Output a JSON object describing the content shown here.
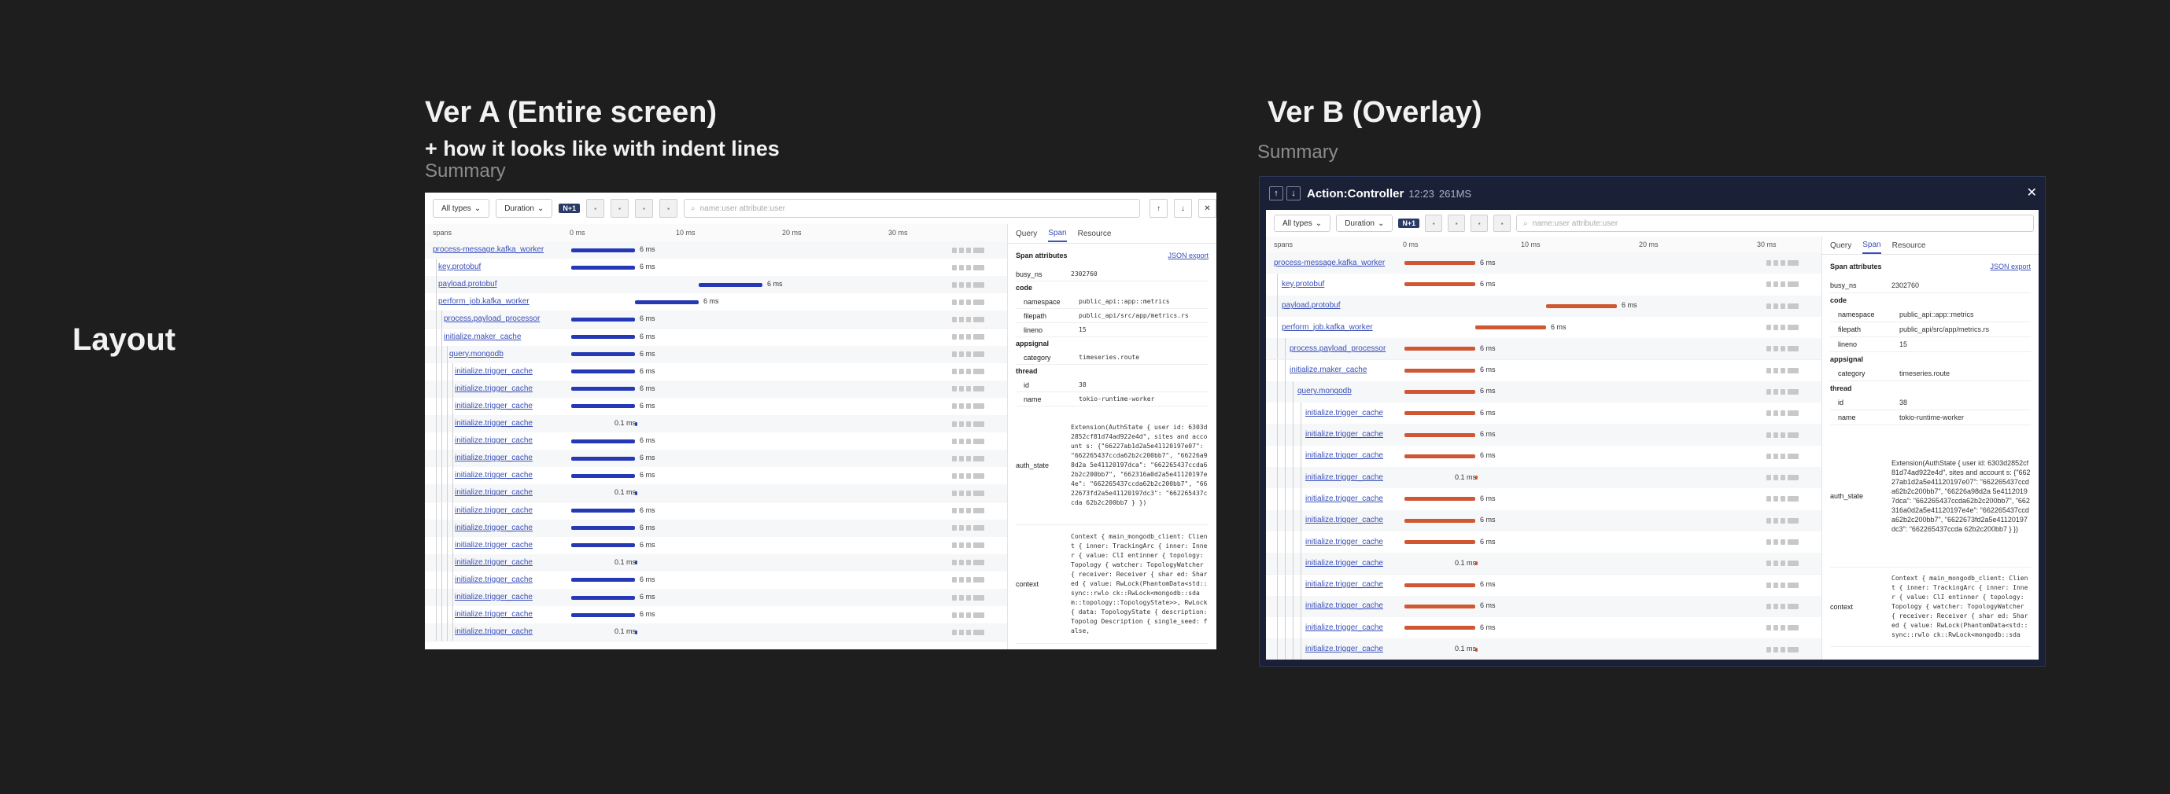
{
  "page": {
    "layout_label": "Layout",
    "ver_a": {
      "title": "Ver A (Entire screen)",
      "subtitle": "+ how it looks like with indent lines",
      "summary": "Summary"
    },
    "ver_b": {
      "title": "Ver B (Overlay)",
      "summary": "Summary"
    }
  },
  "overlay_header": {
    "title": "Action:Controller",
    "time": "12:23",
    "duration": "261MS",
    "close": "✕"
  },
  "toolbar": {
    "types": "All types",
    "duration": "Duration",
    "nplus": "N+1",
    "search_placeholder": "name:user attribute:user"
  },
  "timeline": {
    "col_spans": "spans",
    "ticks": [
      "0 ms",
      "10 ms",
      "20 ms",
      "30 ms"
    ]
  },
  "colors": {
    "bar_a": "#2639b5",
    "bar_b": "#cf5733",
    "header_b": "#1a2136",
    "link": "#3a4fb8"
  },
  "spans": [
    {
      "name": "process-message.kafka_worker",
      "depth": 0,
      "start": 0,
      "dur": 6,
      "label": "6 ms"
    },
    {
      "name": "key.protobuf",
      "depth": 1,
      "start": 0,
      "dur": 6,
      "label": "6 ms"
    },
    {
      "name": "payload.protobuf",
      "depth": 1,
      "start": 12,
      "dur": 6,
      "label": "6 ms"
    },
    {
      "name": "perform_job.kafka_worker",
      "depth": 1,
      "start": 6,
      "dur": 6,
      "label": "6 ms"
    },
    {
      "name": "process.payload_processor",
      "depth": 2,
      "start": 0,
      "dur": 6,
      "label": "6 ms"
    },
    {
      "name": "initialize.maker_cache",
      "depth": 2,
      "start": 0,
      "dur": 6,
      "label": "6 ms"
    },
    {
      "name": "query.mongodb",
      "depth": 3,
      "start": 0,
      "dur": 6,
      "label": "6 ms"
    },
    {
      "name": "initialize.trigger_cache",
      "depth": 4,
      "start": 0,
      "dur": 6,
      "label": "6 ms"
    },
    {
      "name": "initialize.trigger_cache",
      "depth": 4,
      "start": 0,
      "dur": 6,
      "label": "6 ms"
    },
    {
      "name": "initialize.trigger_cache",
      "depth": 4,
      "start": 0,
      "dur": 6,
      "label": "6 ms"
    },
    {
      "name": "initialize.trigger_cache",
      "depth": 4,
      "start": 6,
      "dur": 0.1,
      "label": "0.1 ms"
    },
    {
      "name": "initialize.trigger_cache",
      "depth": 4,
      "start": 0,
      "dur": 6,
      "label": "6 ms"
    },
    {
      "name": "initialize.trigger_cache",
      "depth": 4,
      "start": 0,
      "dur": 6,
      "label": "6 ms"
    },
    {
      "name": "initialize.trigger_cache",
      "depth": 4,
      "start": 0,
      "dur": 6,
      "label": "6 ms"
    },
    {
      "name": "initialize.trigger_cache",
      "depth": 4,
      "start": 6,
      "dur": 0.1,
      "label": "0.1 ms"
    },
    {
      "name": "initialize.trigger_cache",
      "depth": 4,
      "start": 0,
      "dur": 6,
      "label": "6 ms"
    },
    {
      "name": "initialize.trigger_cache",
      "depth": 4,
      "start": 0,
      "dur": 6,
      "label": "6 ms"
    },
    {
      "name": "initialize.trigger_cache",
      "depth": 4,
      "start": 0,
      "dur": 6,
      "label": "6 ms"
    },
    {
      "name": "initialize.trigger_cache",
      "depth": 4,
      "start": 6,
      "dur": 0.1,
      "label": "0.1 ms"
    },
    {
      "name": "initialize.trigger_cache",
      "depth": 4,
      "start": 0,
      "dur": 6,
      "label": "6 ms"
    },
    {
      "name": "initialize.trigger_cache",
      "depth": 4,
      "start": 0,
      "dur": 6,
      "label": "6 ms"
    },
    {
      "name": "initialize.trigger_cache",
      "depth": 4,
      "start": 0,
      "dur": 6,
      "label": "6 ms"
    },
    {
      "name": "initialize.trigger_cache",
      "depth": 4,
      "start": 6,
      "dur": 0.1,
      "label": "0.1 ms"
    }
  ],
  "side": {
    "tabs": [
      "Query",
      "Span",
      "Resource"
    ],
    "active_tab": "Span",
    "attr_title": "Span attributes",
    "json_export": "JSON export",
    "busy_ns_key": "busy_ns",
    "busy_ns": "2302760",
    "code_group": "code",
    "code": [
      {
        "k": "namespace",
        "v": "public_api::app::metrics"
      },
      {
        "k": "filepath",
        "v": "public_api/src/app/metrics.rs"
      },
      {
        "k": "lineno",
        "v": "15"
      }
    ],
    "appsignal_group": "appsignal",
    "appsignal": [
      {
        "k": "category",
        "v": "timeseries.route"
      }
    ],
    "thread_group": "thread",
    "thread": [
      {
        "k": "id",
        "v": "38"
      },
      {
        "k": "name",
        "v": "tokio-runtime-worker"
      }
    ],
    "auth_state_key": "auth_state",
    "auth_state_a": "Extension(AuthState { user id: 6303d2852cf81d74ad922e4d\", sites and account s: {\"66227ab1d2a5e41120197e07\": \"662265437ccda62b2c200bb7\", \"66226a98d2a 5e41120197dca\": \"662265437ccda62b2c200bb7\", \"662316a0d2a5e41120197e4e\": \"662265437ccda62b2c200bb7\", \"6622673fd2a5e41120197dc3\": \"662265437ccda 62b2c200bb7 } })",
    "auth_state_b": "Extension(AuthState { user id: 6303d2852cf81d74ad922e4d\", sites and account s: {\"66227ab1d2a5e41120197e07\": \"662265437ccda62b2c200bb7\", \"66226a98d2a 5e41120197dca\": \"662265437ccda62b2c200bb7\", \"662316a0d2a5e41120197e4e\": \"662265437ccda62b2c200bb7\", \"6622673fd2a5e41120197dc3\": \"662265437ccda 62b2c200bb7 } })",
    "context_key": "context",
    "context_a": "Context { main_mongodb_client: Client { inner: TrackingArc { inner: Inner { value: ClI entinner { topology: Topology { watcher: TopologyWatcher { receiver: Receiver { shar ed: Shared { value: RwLock(PhantomData<std::sync::rwlo ck::RwLock<mongodb::sda m::topology::TopologyState>>, RwLock { data: TopologyState { description: Topolog Description { single_seed: false,",
    "context_b": "Context { main_mongodb_client: Client { inner: TrackingArc { inner: Inner { value: ClI entinner { topology: Topology { watcher: TopologyWatcher { receiver: Receiver { shar ed: Shared { value: RwLock(PhantomData<std::sync::rwlo ck::RwLock<mongodb::sda"
  }
}
